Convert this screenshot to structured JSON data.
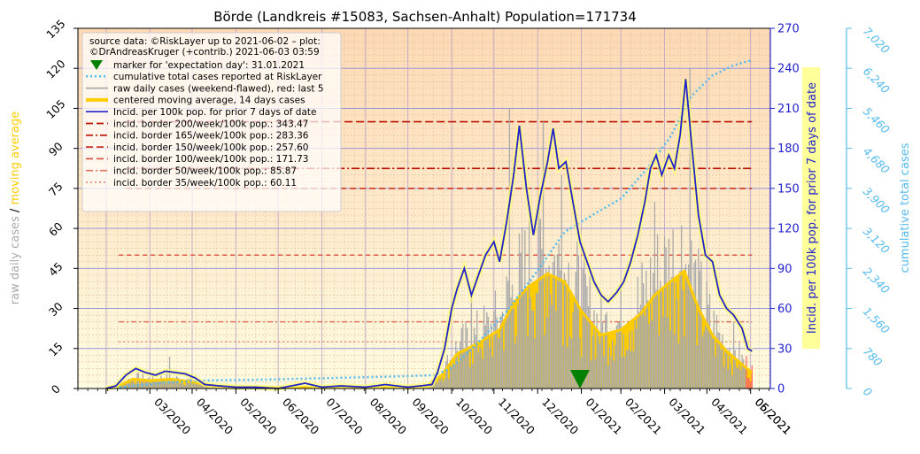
{
  "chart_data": {
    "type": "line",
    "title": "Börde (Landkreis #15083, Sachsen-Anhalt) Population=171734",
    "x_ticks": [
      "03/2020",
      "04/2020",
      "05/2020",
      "06/2020",
      "07/2020",
      "08/2020",
      "09/2020",
      "10/2020",
      "11/2020",
      "12/2020",
      "01/2021",
      "02/2021",
      "03/2021",
      "04/2021",
      "05/2021",
      "06/2021"
    ],
    "x_range": [
      "2020-02-10",
      "2021-06-15"
    ],
    "left_axis": {
      "label_parts": [
        "raw daily cases",
        " / ",
        "moving average"
      ],
      "ticks": [
        0,
        15,
        30,
        45,
        60,
        75,
        90,
        105,
        120,
        135
      ],
      "ylim": [
        0,
        135
      ]
    },
    "right_axis": {
      "label": "Incid. per 100k pop. for prior 7 days of date",
      "ticks": [
        0,
        30,
        60,
        90,
        120,
        150,
        180,
        210,
        240,
        270
      ],
      "ylim": [
        0,
        270
      ]
    },
    "far_right_axis": {
      "label": "cumulative total cases",
      "ticks": [
        "0",
        "780",
        "1,560",
        "2,340",
        "3,120",
        "3,900",
        "4,680",
        "5,460",
        "6,240",
        "7,020"
      ],
      "ylim": [
        0,
        7020
      ]
    },
    "legend": {
      "placement": "upper-left",
      "source_lines": [
        "source data: ©RiskLayer up to 2021-06-02 – plot:",
        "©DrAndreasKruger (+contrib.) 2021-06-03 03:59"
      ],
      "entries": [
        {
          "label": "marker for 'expectation day': 31.01.2021",
          "style": "triangle",
          "color": "#008000"
        },
        {
          "label": "cumulative total cases reported at RiskLayer",
          "style": "dotted",
          "color": "#55bbee"
        },
        {
          "label": "raw daily cases (weekend-flawed), red: last 5",
          "style": "solid",
          "color": "#aaaaaa"
        },
        {
          "label": "centered moving average, 14 days cases",
          "style": "thick",
          "color": "#ffcc00"
        },
        {
          "label": "Incid. per 100k pop. for prior 7 days of date",
          "style": "solid",
          "color": "#2222cc"
        },
        {
          "label": "incid. border 200/week/100k pop.: 343.47",
          "style": "dash",
          "color": "#bb1100"
        },
        {
          "label": "incid. border 165/week/100k pop.: 283.36",
          "style": "dashdot",
          "color": "#bb1100"
        },
        {
          "label": "incid. border 150/week/100k pop.: 257.60",
          "style": "dash",
          "color": "#cc3322"
        },
        {
          "label": "incid. border 100/week/100k pop.: 171.73",
          "style": "dash",
          "color": "#dd5544"
        },
        {
          "label": "incid. border   50/week/100k pop.: 85.87",
          "style": "dashdot",
          "color": "#e07060"
        },
        {
          "label": "incid. border   35/week/100k pop.: 60.11",
          "style": "dot",
          "color": "#e89080"
        }
      ]
    },
    "border_lines_incidence": [
      200,
      165,
      150,
      100,
      50,
      35
    ],
    "expectation_day": "2021-01-31",
    "series": {
      "incidence_7day_per100k": {
        "points": [
          [
            "2020-03-01",
            0
          ],
          [
            "2020-03-08",
            2
          ],
          [
            "2020-03-15",
            10
          ],
          [
            "2020-03-22",
            15
          ],
          [
            "2020-03-29",
            12
          ],
          [
            "2020-04-05",
            10
          ],
          [
            "2020-04-12",
            13
          ],
          [
            "2020-04-19",
            12
          ],
          [
            "2020-04-26",
            11
          ],
          [
            "2020-05-03",
            8
          ],
          [
            "2020-05-10",
            3
          ],
          [
            "2020-05-20",
            2
          ],
          [
            "2020-06-01",
            1
          ],
          [
            "2020-06-15",
            1
          ],
          [
            "2020-07-01",
            0
          ],
          [
            "2020-07-20",
            4
          ],
          [
            "2020-08-01",
            1
          ],
          [
            "2020-08-15",
            2
          ],
          [
            "2020-09-01",
            1
          ],
          [
            "2020-09-15",
            3
          ],
          [
            "2020-10-01",
            1
          ],
          [
            "2020-10-10",
            2
          ],
          [
            "2020-10-18",
            3
          ],
          [
            "2020-10-22",
            12
          ],
          [
            "2020-10-27",
            30
          ],
          [
            "2020-11-01",
            60
          ],
          [
            "2020-11-05",
            75
          ],
          [
            "2020-11-10",
            90
          ],
          [
            "2020-11-15",
            70
          ],
          [
            "2020-11-20",
            85
          ],
          [
            "2020-11-25",
            100
          ],
          [
            "2020-12-01",
            110
          ],
          [
            "2020-12-05",
            95
          ],
          [
            "2020-12-10",
            125
          ],
          [
            "2020-12-15",
            160
          ],
          [
            "2020-12-19",
            197
          ],
          [
            "2020-12-24",
            150
          ],
          [
            "2020-12-29",
            115
          ],
          [
            "2021-01-03",
            145
          ],
          [
            "2021-01-08",
            170
          ],
          [
            "2021-01-12",
            195
          ],
          [
            "2021-01-16",
            165
          ],
          [
            "2021-01-21",
            170
          ],
          [
            "2021-01-26",
            140
          ],
          [
            "2021-01-31",
            110
          ],
          [
            "2021-02-05",
            95
          ],
          [
            "2021-02-10",
            80
          ],
          [
            "2021-02-15",
            70
          ],
          [
            "2021-02-20",
            65
          ],
          [
            "2021-02-26",
            72
          ],
          [
            "2021-03-03",
            80
          ],
          [
            "2021-03-08",
            95
          ],
          [
            "2021-03-13",
            115
          ],
          [
            "2021-03-18",
            140
          ],
          [
            "2021-03-22",
            165
          ],
          [
            "2021-03-26",
            175
          ],
          [
            "2021-03-30",
            160
          ],
          [
            "2021-04-04",
            175
          ],
          [
            "2021-04-08",
            165
          ],
          [
            "2021-04-12",
            190
          ],
          [
            "2021-04-16",
            232
          ],
          [
            "2021-04-20",
            185
          ],
          [
            "2021-04-25",
            130
          ],
          [
            "2021-04-30",
            100
          ],
          [
            "2021-05-05",
            95
          ],
          [
            "2021-05-10",
            70
          ],
          [
            "2021-05-15",
            60
          ],
          [
            "2021-05-20",
            55
          ],
          [
            "2021-05-26",
            45
          ],
          [
            "2021-05-30",
            30
          ],
          [
            "2021-06-02",
            28
          ]
        ]
      },
      "moving_average_14d": {
        "points": [
          [
            "2020-03-01",
            0
          ],
          [
            "2020-03-10",
            1
          ],
          [
            "2020-03-20",
            3.5
          ],
          [
            "2020-04-01",
            3
          ],
          [
            "2020-04-15",
            3.5
          ],
          [
            "2020-05-01",
            2.5
          ],
          [
            "2020-05-15",
            1
          ],
          [
            "2020-06-01",
            0.5
          ],
          [
            "2020-07-01",
            0.3
          ],
          [
            "2020-08-01",
            0.5
          ],
          [
            "2020-09-01",
            0.5
          ],
          [
            "2020-10-01",
            0.5
          ],
          [
            "2020-10-15",
            1
          ],
          [
            "2020-10-25",
            5
          ],
          [
            "2020-11-05",
            13
          ],
          [
            "2020-11-20",
            17
          ],
          [
            "2020-12-05",
            22
          ],
          [
            "2020-12-15",
            32
          ],
          [
            "2020-12-25",
            38
          ],
          [
            "2021-01-08",
            43
          ],
          [
            "2021-01-20",
            40
          ],
          [
            "2021-02-01",
            29
          ],
          [
            "2021-02-15",
            20
          ],
          [
            "2021-03-01",
            22
          ],
          [
            "2021-03-15",
            28
          ],
          [
            "2021-03-25",
            35
          ],
          [
            "2021-04-05",
            40
          ],
          [
            "2021-04-15",
            44
          ],
          [
            "2021-04-25",
            30
          ],
          [
            "2021-05-05",
            20
          ],
          [
            "2021-05-15",
            14
          ],
          [
            "2021-05-26",
            9
          ],
          [
            "2021-06-02",
            6
          ]
        ]
      },
      "raw_daily_cases": {
        "approx_peaks": [
          [
            "2020-04-15",
            12
          ],
          [
            "2020-11-15",
            37
          ],
          [
            "2020-12-12",
            105
          ],
          [
            "2021-01-05",
            100
          ],
          [
            "2021-01-18",
            80
          ],
          [
            "2021-03-25",
            70
          ],
          [
            "2021-04-19",
            120
          ],
          [
            "2021-05-20",
            25
          ]
        ]
      },
      "cumulative_total_cases": {
        "points": [
          [
            "2020-03-01",
            0
          ],
          [
            "2020-03-20",
            50
          ],
          [
            "2020-04-15",
            120
          ],
          [
            "2020-05-15",
            160
          ],
          [
            "2020-06-15",
            170
          ],
          [
            "2020-08-01",
            200
          ],
          [
            "2020-09-15",
            230
          ],
          [
            "2020-10-20",
            260
          ],
          [
            "2020-11-01",
            400
          ],
          [
            "2020-11-20",
            900
          ],
          [
            "2020-12-10",
            1500
          ],
          [
            "2021-01-01",
            2300
          ],
          [
            "2021-01-20",
            3050
          ],
          [
            "2021-02-10",
            3400
          ],
          [
            "2021-03-01",
            3700
          ],
          [
            "2021-03-20",
            4300
          ],
          [
            "2021-04-05",
            4900
          ],
          [
            "2021-04-20",
            5700
          ],
          [
            "2021-05-05",
            6100
          ],
          [
            "2021-05-20",
            6300
          ],
          [
            "2021-06-02",
            6400
          ]
        ]
      }
    }
  }
}
